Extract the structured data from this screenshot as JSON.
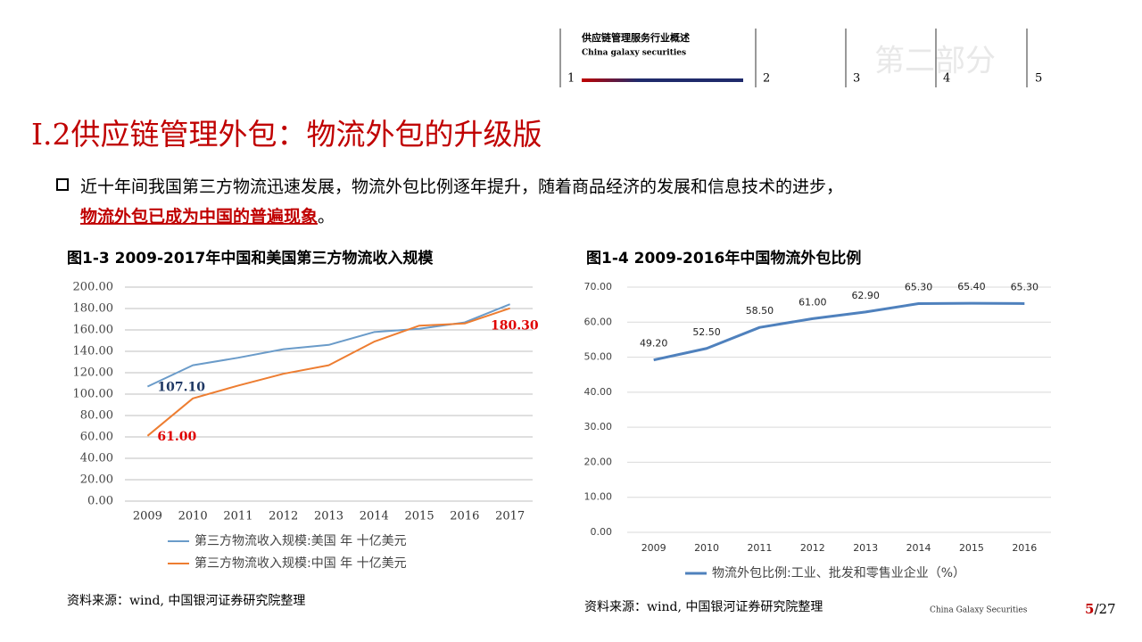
{
  "header": {
    "section_title": "供应链管理服务行业概述",
    "section_subtitle": "China galaxy securities",
    "tabs": [
      "1",
      "2",
      "3",
      "4",
      "5"
    ],
    "watermark": "第二部分"
  },
  "title": "I.2供应链管理外包：物流外包的升级版",
  "bullet": {
    "text": "近十年间我国第三方物流迅速发展，物流外包比例逐年提升，随着商品经济的发展和信息技术的进步，",
    "highlight": "物流外包已成为中国的普遍现象",
    "end": "。"
  },
  "chart_data": [
    {
      "type": "line",
      "title": "图1-3 2009-2017年中国和美国第三方物流收入规模",
      "categories": [
        "2009",
        "2010",
        "2011",
        "2012",
        "2013",
        "2014",
        "2015",
        "2016",
        "2017"
      ],
      "series": [
        {
          "name": "第三方物流收入规模:美国 年 十亿美元",
          "color": "#6a9bc9",
          "label_color": "#1f3864",
          "values": [
            107.1,
            127,
            134,
            142,
            146,
            158,
            161,
            167,
            184
          ],
          "value_labels": [
            "107.10",
            null,
            null,
            null,
            null,
            null,
            null,
            null,
            null
          ]
        },
        {
          "name": "第三方物流收入规模:中国 年 十亿美元",
          "color": "#ed7d31",
          "label_color": "#e00000",
          "values": [
            61.0,
            96,
            108,
            119,
            127,
            149,
            164,
            166,
            180.3
          ],
          "value_labels": [
            "61.00",
            null,
            null,
            null,
            null,
            null,
            null,
            null,
            "180.30"
          ]
        }
      ],
      "ylim": [
        0,
        200
      ],
      "yticks": [
        {
          "value": 0,
          "label": "0.00"
        },
        {
          "value": 20,
          "label": "20.00"
        },
        {
          "value": 40,
          "label": "40.00"
        },
        {
          "value": 60,
          "label": "60.00"
        },
        {
          "value": 80,
          "label": "80.00"
        },
        {
          "value": 100,
          "label": "100.00"
        },
        {
          "value": 120,
          "label": "120.00"
        },
        {
          "value": 140,
          "label": "140.00"
        },
        {
          "value": 160,
          "label": "160.00"
        },
        {
          "value": 180,
          "label": "180.00"
        },
        {
          "value": 200,
          "label": "200.00"
        }
      ],
      "grid": true,
      "source": "资料来源：wind, 中国银河证券研究院整理"
    },
    {
      "type": "line",
      "title": "图1-4 2009-2016年中国物流外包比例",
      "categories": [
        "2009",
        "2010",
        "2011",
        "2012",
        "2013",
        "2014",
        "2015",
        "2016"
      ],
      "series": [
        {
          "name": "物流外包比例:工业、批发和零售业企业（%）",
          "color": "#4f81bd",
          "label_color": "#222222",
          "values": [
            49.2,
            52.5,
            58.5,
            61.0,
            62.9,
            65.3,
            65.4,
            65.3
          ],
          "value_labels": [
            "49.20",
            "52.50",
            "58.50",
            "61.00",
            "62.90",
            "65.30",
            "65.40",
            "65.30"
          ]
        }
      ],
      "ylim": [
        0,
        70
      ],
      "yticks": [
        {
          "value": 0,
          "label": "0.00"
        },
        {
          "value": 10,
          "label": "10.00"
        },
        {
          "value": 20,
          "label": "20.00"
        },
        {
          "value": 30,
          "label": "30.00"
        },
        {
          "value": 40,
          "label": "40.00"
        },
        {
          "value": 50,
          "label": "50.00"
        },
        {
          "value": 60,
          "label": "60.00"
        },
        {
          "value": 70,
          "label": "70.00"
        }
      ],
      "grid": true,
      "source": "资料来源：wind, 中国银河证券研究院整理"
    }
  ],
  "footer": {
    "brand": "China Galaxy Securities",
    "page": "5",
    "total": "/27"
  }
}
